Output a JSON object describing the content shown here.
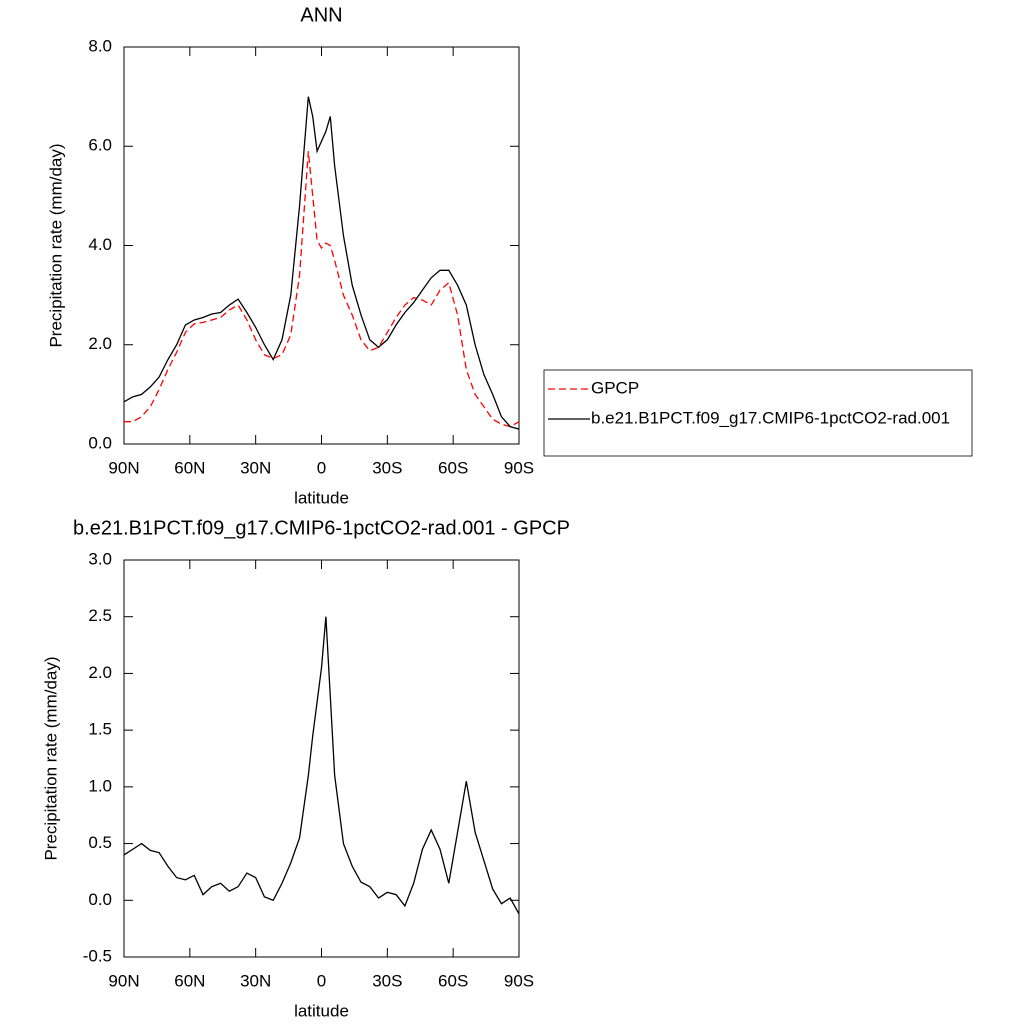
{
  "chart_data": [
    {
      "type": "line",
      "title": "ANN",
      "xlabel": "latitude",
      "ylabel": "Precipitation rate (mm/day)",
      "x": [
        90,
        86,
        82,
        78,
        74,
        70,
        66,
        62,
        58,
        54,
        50,
        46,
        42,
        38,
        34,
        30,
        26,
        22,
        18,
        14,
        10,
        6,
        4,
        2,
        0,
        -2,
        -4,
        -6,
        -10,
        -14,
        -18,
        -22,
        -26,
        -30,
        -34,
        -38,
        -42,
        -46,
        -50,
        -54,
        -58,
        -62,
        -66,
        -70,
        -74,
        -78,
        -82,
        -86,
        -90
      ],
      "series": [
        {
          "name": "GPCP",
          "color": "#ff0000",
          "linestyle": "dashed",
          "values": [
            0.45,
            0.45,
            0.55,
            0.75,
            1.1,
            1.5,
            1.85,
            2.25,
            2.42,
            2.45,
            2.5,
            2.55,
            2.7,
            2.8,
            2.5,
            2.1,
            1.8,
            1.72,
            1.8,
            2.2,
            3.4,
            5.9,
            5.0,
            4.1,
            3.95,
            4.05,
            4.0,
            3.7,
            3.0,
            2.6,
            2.1,
            1.88,
            1.95,
            2.25,
            2.55,
            2.8,
            2.95,
            2.9,
            2.8,
            3.1,
            3.25,
            2.6,
            1.5,
            1.0,
            0.75,
            0.5,
            0.4,
            0.35,
            0.45
          ]
        },
        {
          "name": "b.e21.B1PCT.f09_g17.CMIP6-1pctCO2-rad.001",
          "color": "#000000",
          "linestyle": "solid",
          "values": [
            0.85,
            0.95,
            1.0,
            1.15,
            1.35,
            1.7,
            2.0,
            2.4,
            2.5,
            2.55,
            2.62,
            2.65,
            2.8,
            2.92,
            2.65,
            2.35,
            2.0,
            1.7,
            2.1,
            3.0,
            4.8,
            7.0,
            6.6,
            5.9,
            6.1,
            6.3,
            6.6,
            5.6,
            4.2,
            3.2,
            2.6,
            2.1,
            1.95,
            2.1,
            2.4,
            2.65,
            2.85,
            3.1,
            3.35,
            3.5,
            3.5,
            3.2,
            2.8,
            2.0,
            1.4,
            1.0,
            0.55,
            0.35,
            0.3
          ]
        }
      ],
      "xlim": [
        90,
        -90
      ],
      "xticks": [
        {
          "value": 90,
          "label": "90N"
        },
        {
          "value": 60,
          "label": "60N"
        },
        {
          "value": 30,
          "label": "30N"
        },
        0,
        {
          "value": -30,
          "label": "30S"
        },
        {
          "value": -60,
          "label": "60S"
        },
        {
          "value": -90,
          "label": "90S"
        }
      ],
      "ylim": [
        0,
        8
      ],
      "yticks": [
        {
          "value": 0,
          "label": "0.0"
        },
        {
          "value": 2,
          "label": "2.0"
        },
        {
          "value": 4,
          "label": "4.0"
        },
        {
          "value": 6,
          "label": "6.0"
        },
        {
          "value": 8,
          "label": "8.0"
        }
      ],
      "legend": "right"
    },
    {
      "type": "line",
      "title": "b.e21.B1PCT.f09_g17.CMIP6-1pctCO2-rad.001 - GPCP",
      "xlabel": "latitude",
      "ylabel": "Precipitation rate (mm/day)",
      "x": [
        90,
        86,
        82,
        78,
        74,
        70,
        66,
        62,
        58,
        54,
        50,
        46,
        42,
        38,
        34,
        30,
        26,
        22,
        18,
        14,
        10,
        6,
        4,
        2,
        0,
        -2,
        -4,
        -6,
        -10,
        -14,
        -18,
        -22,
        -26,
        -30,
        -34,
        -38,
        -42,
        -46,
        -50,
        -54,
        -58,
        -62,
        -66,
        -70,
        -74,
        -78,
        -82,
        -86,
        -90
      ],
      "values": [
        0.4,
        0.45,
        0.5,
        0.44,
        0.42,
        0.3,
        0.2,
        0.18,
        0.22,
        0.05,
        0.12,
        0.15,
        0.08,
        0.12,
        0.24,
        0.2,
        0.03,
        0.0,
        0.15,
        0.33,
        0.55,
        1.1,
        1.45,
        1.75,
        2.05,
        2.5,
        1.8,
        1.1,
        0.5,
        0.3,
        0.16,
        0.12,
        0.02,
        0.07,
        0.05,
        -0.05,
        0.15,
        0.45,
        0.62,
        0.45,
        0.15,
        0.6,
        1.05,
        0.6,
        0.35,
        0.1,
        -0.03,
        0.02,
        -0.12
      ],
      "color": "#000000",
      "xlim": [
        90,
        -90
      ],
      "xticks": [
        {
          "value": 90,
          "label": "90N"
        },
        {
          "value": 60,
          "label": "60N"
        },
        {
          "value": 30,
          "label": "30N"
        },
        0,
        {
          "value": -30,
          "label": "30S"
        },
        {
          "value": -60,
          "label": "60S"
        },
        {
          "value": -90,
          "label": "90S"
        }
      ],
      "ylim": [
        -0.5,
        3
      ],
      "yticks": [
        -0.5,
        {
          "value": 0,
          "label": "0.0"
        },
        0.5,
        {
          "value": 1,
          "label": "1.0"
        },
        1.5,
        {
          "value": 2,
          "label": "2.0"
        },
        2.5,
        {
          "value": 3,
          "label": "3.0"
        }
      ]
    }
  ]
}
